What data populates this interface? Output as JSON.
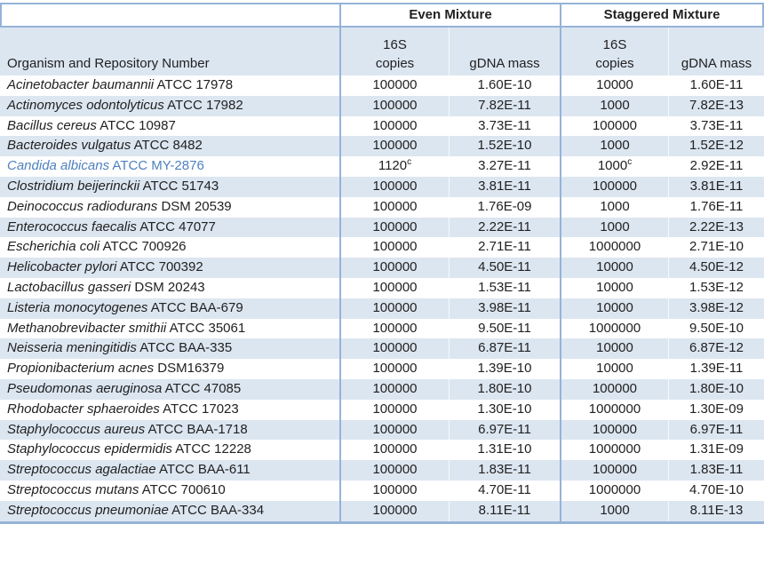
{
  "table": {
    "top_header": {
      "even": "Even Mixture",
      "staggered": "Staggered Mixture"
    },
    "sub_header": {
      "organism": "Organism and Repository Number",
      "copies_line1": "16S",
      "copies_line2": "copies",
      "mass": "gDNA mass"
    },
    "colors": {
      "row_alt_fill": "#dce6f1",
      "border": "#95b3d7",
      "highlight_text": "#4f81bd"
    },
    "rows": [
      {
        "name": "Acinetobacter baumannii",
        "repo": "ATCC 17978",
        "even_copies": "100000",
        "even_sup": "",
        "even_mass": "1.60E-10",
        "stag_copies": "10000",
        "stag_sup": "",
        "stag_mass": "1.60E-11",
        "highlight": false
      },
      {
        "name": "Actinomyces odontolyticus",
        "repo": "ATCC 17982",
        "even_copies": "100000",
        "even_sup": "",
        "even_mass": "7.82E-11",
        "stag_copies": "1000",
        "stag_sup": "",
        "stag_mass": "7.82E-13",
        "highlight": false
      },
      {
        "name": "Bacillus cereus",
        "repo": "ATCC 10987",
        "even_copies": "100000",
        "even_sup": "",
        "even_mass": "3.73E-11",
        "stag_copies": "100000",
        "stag_sup": "",
        "stag_mass": "3.73E-11",
        "highlight": false
      },
      {
        "name": "Bacteroides vulgatus",
        "repo": "ATCC 8482",
        "even_copies": "100000",
        "even_sup": "",
        "even_mass": "1.52E-10",
        "stag_copies": "1000",
        "stag_sup": "",
        "stag_mass": "1.52E-12",
        "highlight": false
      },
      {
        "name": "Candida albicans",
        "repo": "ATCC MY-2876",
        "even_copies": "1120",
        "even_sup": "c",
        "even_mass": "3.27E-11",
        "stag_copies": "1000",
        "stag_sup": "c",
        "stag_mass": "2.92E-11",
        "highlight": true
      },
      {
        "name": "Clostridium beijerinckii",
        "repo": "ATCC 51743",
        "even_copies": "100000",
        "even_sup": "",
        "even_mass": "3.81E-11",
        "stag_copies": "100000",
        "stag_sup": "",
        "stag_mass": "3.81E-11",
        "highlight": false
      },
      {
        "name": "Deinococcus radiodurans",
        "repo": "DSM 20539",
        "even_copies": "100000",
        "even_sup": "",
        "even_mass": "1.76E-09",
        "stag_copies": "1000",
        "stag_sup": "",
        "stag_mass": "1.76E-11",
        "highlight": false
      },
      {
        "name": "Enterococcus faecalis",
        "repo": "ATCC 47077",
        "even_copies": "100000",
        "even_sup": "",
        "even_mass": "2.22E-11",
        "stag_copies": "1000",
        "stag_sup": "",
        "stag_mass": "2.22E-13",
        "highlight": false
      },
      {
        "name": "Escherichia coli",
        "repo": "ATCC 700926",
        "even_copies": "100000",
        "even_sup": "",
        "even_mass": "2.71E-11",
        "stag_copies": "1000000",
        "stag_sup": "",
        "stag_mass": "2.71E-10",
        "highlight": false
      },
      {
        "name": "Helicobacter pylori",
        "repo": "ATCC 700392",
        "even_copies": "100000",
        "even_sup": "",
        "even_mass": "4.50E-11",
        "stag_copies": "10000",
        "stag_sup": "",
        "stag_mass": "4.50E-12",
        "highlight": false
      },
      {
        "name": "Lactobacillus gasseri",
        "repo": "DSM 20243",
        "even_copies": "100000",
        "even_sup": "",
        "even_mass": "1.53E-11",
        "stag_copies": "10000",
        "stag_sup": "",
        "stag_mass": "1.53E-12",
        "highlight": false
      },
      {
        "name": "Listeria monocytogenes",
        "repo": "ATCC BAA-679",
        "even_copies": "100000",
        "even_sup": "",
        "even_mass": "3.98E-11",
        "stag_copies": "10000",
        "stag_sup": "",
        "stag_mass": "3.98E-12",
        "highlight": false
      },
      {
        "name": "Methanobrevibacter smithii",
        "repo": "ATCC 35061",
        "even_copies": "100000",
        "even_sup": "",
        "even_mass": "9.50E-11",
        "stag_copies": "1000000",
        "stag_sup": "",
        "stag_mass": "9.50E-10",
        "highlight": false
      },
      {
        "name": "Neisseria meningitidis",
        "repo": "ATCC BAA-335",
        "even_copies": "100000",
        "even_sup": "",
        "even_mass": "6.87E-11",
        "stag_copies": "10000",
        "stag_sup": "",
        "stag_mass": "6.87E-12",
        "highlight": false
      },
      {
        "name": "Propionibacterium acnes",
        "repo": "DSM16379",
        "even_copies": "100000",
        "even_sup": "",
        "even_mass": "1.39E-10",
        "stag_copies": "10000",
        "stag_sup": "",
        "stag_mass": "1.39E-11",
        "highlight": false
      },
      {
        "name": "Pseudomonas aeruginosa",
        "repo": "ATCC 47085",
        "even_copies": "100000",
        "even_sup": "",
        "even_mass": "1.80E-10",
        "stag_copies": "100000",
        "stag_sup": "",
        "stag_mass": "1.80E-10",
        "highlight": false
      },
      {
        "name": "Rhodobacter sphaeroides",
        "repo": "ATCC 17023",
        "even_copies": "100000",
        "even_sup": "",
        "even_mass": "1.30E-10",
        "stag_copies": "1000000",
        "stag_sup": "",
        "stag_mass": "1.30E-09",
        "highlight": false
      },
      {
        "name": "Staphylococcus aureus",
        "repo": "ATCC BAA-1718",
        "even_copies": "100000",
        "even_sup": "",
        "even_mass": "6.97E-11",
        "stag_copies": "100000",
        "stag_sup": "",
        "stag_mass": "6.97E-11",
        "highlight": false
      },
      {
        "name": "Staphylococcus epidermidis",
        "repo": "ATCC 12228",
        "even_copies": "100000",
        "even_sup": "",
        "even_mass": "1.31E-10",
        "stag_copies": "1000000",
        "stag_sup": "",
        "stag_mass": "1.31E-09",
        "highlight": false
      },
      {
        "name": "Streptococcus agalactiae",
        "repo": "ATCC BAA-611",
        "even_copies": "100000",
        "even_sup": "",
        "even_mass": "1.83E-11",
        "stag_copies": "100000",
        "stag_sup": "",
        "stag_mass": "1.83E-11",
        "highlight": false
      },
      {
        "name": "Streptococcus mutans",
        "repo": "ATCC 700610",
        "even_copies": "100000",
        "even_sup": "",
        "even_mass": "4.70E-11",
        "stag_copies": "1000000",
        "stag_sup": "",
        "stag_mass": "4.70E-10",
        "highlight": false
      },
      {
        "name": "Streptococcus pneumoniae",
        "repo": "ATCC BAA-334",
        "even_copies": "100000",
        "even_sup": "",
        "even_mass": "8.11E-11",
        "stag_copies": "1000",
        "stag_sup": "",
        "stag_mass": "8.11E-13",
        "highlight": false
      }
    ]
  }
}
